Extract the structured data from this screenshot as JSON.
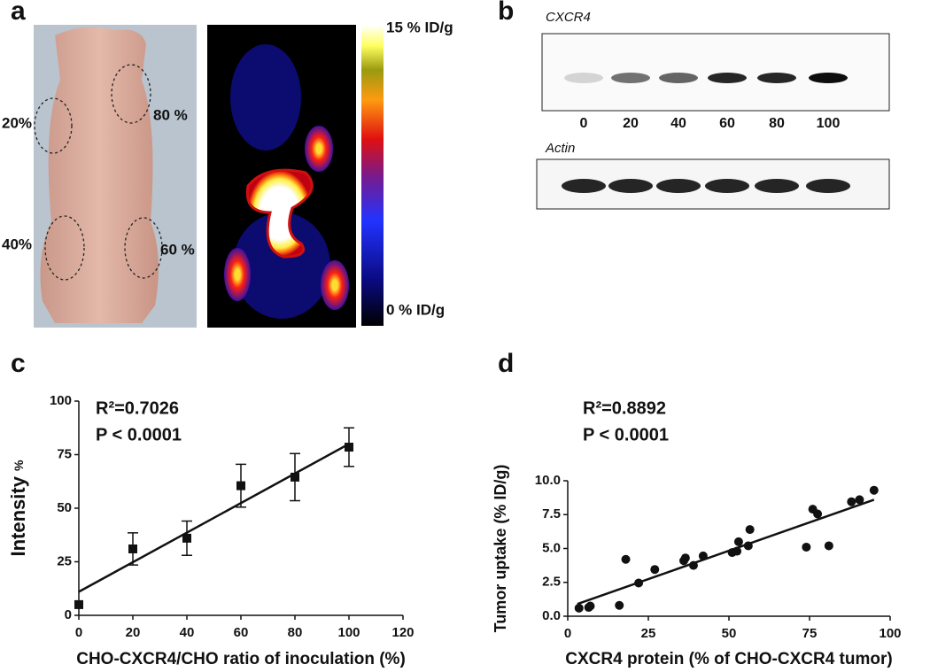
{
  "panel_labels": [
    "a",
    "b",
    "c",
    "d"
  ],
  "photo": {
    "labels": [
      "20%",
      "80 %",
      "40%",
      "60 %"
    ]
  },
  "pet": {
    "max_label": "15 % ID/g",
    "min_label": "0 % ID/g"
  },
  "blot": {
    "protein": "CXCR4",
    "lanes": [
      "0",
      "20",
      "40",
      "60",
      "80",
      "100"
    ],
    "control": "Actin"
  },
  "chart_data": [
    {
      "type": "scatter",
      "marker": "square",
      "xlabel": "CHO-CXCR4/CHO ratio of inoculation (%)",
      "ylabel": "Intensity",
      "ylabel_unit": "%",
      "annotations": [
        "R²=0.7026",
        "P < 0.0001"
      ],
      "x": [
        0,
        20,
        40,
        60,
        80,
        100
      ],
      "series": [
        {
          "color": "#111111",
          "values": [
            5,
            31,
            36,
            60.5,
            64.5,
            78.5
          ],
          "errors": [
            null,
            7.5,
            8,
            10,
            11,
            9
          ]
        }
      ],
      "fit": {
        "x": [
          0,
          100
        ],
        "values": [
          11,
          80
        ]
      },
      "xlim": [
        0,
        120
      ],
      "xticks": [
        0,
        20,
        40,
        60,
        80,
        100,
        120
      ],
      "ylim": [
        0,
        100
      ],
      "yticks": [
        0,
        25,
        50,
        75,
        100
      ]
    },
    {
      "type": "scatter",
      "marker": "circle",
      "xlabel": "CXCR4 protein (% of CHO-CXCR4 tumor)",
      "ylabel": "Tumor uptake (% ID/g)",
      "annotations": [
        "R²=0.8892",
        "P < 0.0001"
      ],
      "x": [
        3.5,
        6.5,
        7,
        16,
        18,
        22,
        27,
        36,
        36.5,
        39,
        42,
        51,
        52.5,
        53,
        56,
        56.5,
        74,
        76,
        77.5,
        81,
        88,
        90.5,
        95
      ],
      "series": [
        {
          "color": "#111111",
          "values": [
            0.6,
            0.65,
            0.75,
            0.8,
            4.2,
            2.45,
            3.45,
            4.1,
            4.3,
            3.75,
            4.45,
            4.7,
            4.8,
            5.5,
            5.2,
            6.4,
            5.1,
            7.9,
            7.55,
            5.2,
            8.45,
            8.6,
            9.3
          ]
        }
      ],
      "fit": {
        "x": [
          3,
          95
        ],
        "values": [
          0.9,
          8.6
        ]
      },
      "xlim": [
        0,
        100
      ],
      "xticks": [
        0,
        25,
        50,
        75,
        100
      ],
      "ylim": [
        0,
        10
      ],
      "yticks": [
        {
          "value": 0,
          "label": "0.0"
        },
        {
          "value": 2.5,
          "label": "2.5"
        },
        {
          "value": 5,
          "label": "5.0"
        },
        {
          "value": 7.5,
          "label": "7.5"
        },
        {
          "value": 10,
          "label": "10.0"
        }
      ]
    }
  ]
}
